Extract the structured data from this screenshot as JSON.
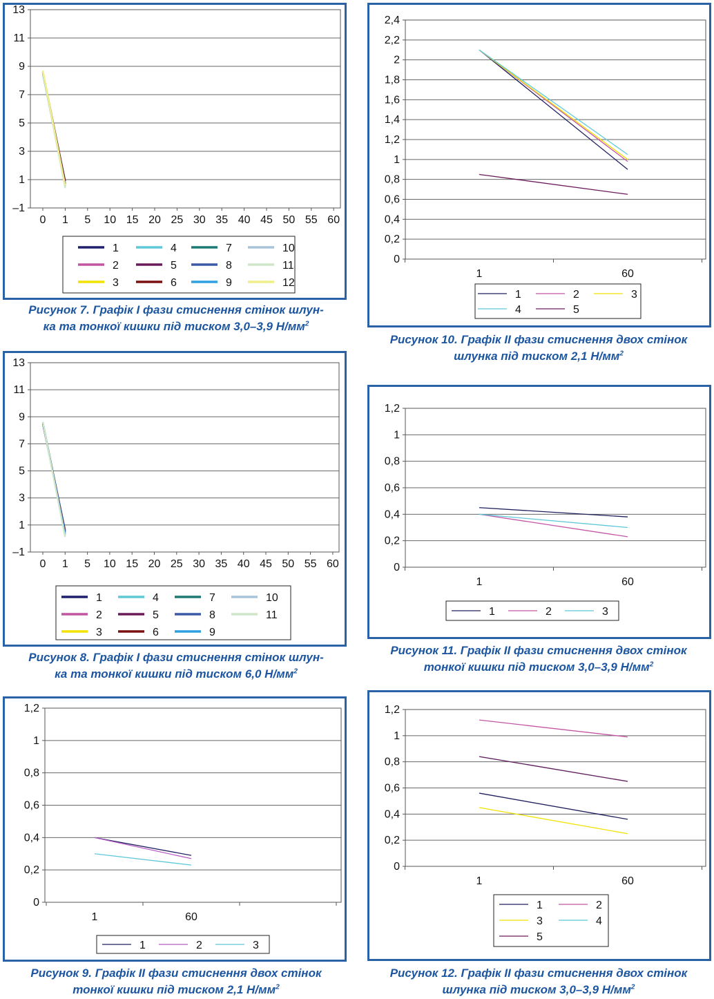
{
  "captions": {
    "fig7": {
      "line1": "Рисунок 7. Графік I фази стиснення стінок шлун-",
      "line2": "ка та тонкої кишки під тиском 3,0–3,9 Н/мм",
      "sup": "2"
    },
    "fig8": {
      "line1": "Рисунок 8. Графік I фази стиснення стінок шлун-",
      "line2": "ка та тонкої кишки під тиском 6,0 Н/мм",
      "sup": "2"
    },
    "fig9": {
      "line1": "Рисунок 9. Графік II фази стиснення двох стінок",
      "line2": "тонкої кишки під тиском 2,1 Н/мм",
      "sup": "2"
    },
    "fig10": {
      "line1": "Рисунок 10. Графік II фази стиснення двох стінок",
      "line2": "шлунка під тиском 2,1 Н/мм",
      "sup": "2"
    },
    "fig11": {
      "line1": "Рисунок 11. Графік II фази стиснення двох стінок",
      "line2": "тонкої кишки під тиском 3,0–3,9 Н/мм",
      "sup": "2"
    },
    "fig12": {
      "line1": "Рисунок 12. Графік II фази стиснення двох стінок",
      "line2": "шлунка під тиском 3,0–3,9 Н/мм",
      "sup": "2"
    }
  },
  "chart_data": [
    {
      "id": "fig7",
      "type": "line",
      "x_ticks": [
        "0",
        "1",
        "5",
        "10",
        "15",
        "20",
        "25",
        "30",
        "35",
        "40",
        "45",
        "50",
        "55",
        "60"
      ],
      "y_ticks": [
        "–1",
        "1",
        "3",
        "5",
        "7",
        "9",
        "11",
        "13"
      ],
      "ylim": [
        -1,
        13
      ],
      "grid": true,
      "legend_position": "bottom",
      "series": [
        {
          "name": "1",
          "color": "#1f1f6e",
          "values": [
            [
              0,
              8.6
            ],
            [
              1,
              0.9
            ]
          ]
        },
        {
          "name": "2",
          "color": "#c354a4",
          "values": [
            [
              0,
              8.6
            ],
            [
              1,
              0.8
            ]
          ]
        },
        {
          "name": "3",
          "color": "#f2e200",
          "values": [
            [
              0,
              8.7
            ],
            [
              1,
              0.7
            ]
          ]
        },
        {
          "name": "4",
          "color": "#5ec8d8",
          "values": [
            [
              0,
              8.5
            ],
            [
              1,
              0.6
            ]
          ]
        },
        {
          "name": "5",
          "color": "#6a1a5a",
          "values": [
            [
              0,
              8.6
            ],
            [
              1,
              0.7
            ]
          ]
        },
        {
          "name": "6",
          "color": "#7a1010",
          "values": [
            [
              0,
              8.5
            ],
            [
              1,
              0.9
            ]
          ]
        },
        {
          "name": "7",
          "color": "#1b7a72",
          "values": [
            [
              0,
              8.6
            ],
            [
              1,
              0.6
            ]
          ]
        },
        {
          "name": "8",
          "color": "#3a5aa8",
          "values": [
            [
              0,
              8.5
            ],
            [
              1,
              0.7
            ]
          ]
        },
        {
          "name": "9",
          "color": "#2ea0e0",
          "values": [
            [
              0,
              8.6
            ],
            [
              1,
              0.5
            ]
          ]
        },
        {
          "name": "10",
          "color": "#a8c4d8",
          "values": [
            [
              0,
              8.5
            ],
            [
              1,
              0.5
            ]
          ]
        },
        {
          "name": "11",
          "color": "#cfe6c8",
          "values": [
            [
              0,
              8.6
            ],
            [
              1,
              0.4
            ]
          ]
        },
        {
          "name": "12",
          "color": "#f0ef8a",
          "values": [
            [
              0,
              8.7
            ],
            [
              1,
              0.6
            ]
          ]
        }
      ]
    },
    {
      "id": "fig8",
      "type": "line",
      "x_ticks": [
        "0",
        "1",
        "5",
        "10",
        "15",
        "20",
        "25",
        "30",
        "35",
        "40",
        "45",
        "50",
        "55",
        "60"
      ],
      "y_ticks": [
        "–1",
        "1",
        "3",
        "5",
        "7",
        "9",
        "11",
        "13"
      ],
      "ylim": [
        -1,
        13
      ],
      "grid": true,
      "legend_position": "bottom",
      "series": [
        {
          "name": "1",
          "color": "#1f1f6e",
          "values": [
            [
              0,
              8.5
            ],
            [
              1,
              0.6
            ]
          ]
        },
        {
          "name": "2",
          "color": "#c354a4",
          "values": [
            [
              0,
              8.5
            ],
            [
              1,
              0.5
            ]
          ]
        },
        {
          "name": "3",
          "color": "#f2e200",
          "values": [
            [
              0,
              8.6
            ],
            [
              1,
              0.4
            ]
          ]
        },
        {
          "name": "4",
          "color": "#5ec8d8",
          "values": [
            [
              0,
              8.6
            ],
            [
              1,
              0.3
            ]
          ]
        },
        {
          "name": "5",
          "color": "#6a1a5a",
          "values": [
            [
              0,
              8.5
            ],
            [
              1,
              0.5
            ]
          ]
        },
        {
          "name": "6",
          "color": "#7a1010",
          "values": [
            [
              0,
              8.5
            ],
            [
              1,
              0.6
            ]
          ]
        },
        {
          "name": "7",
          "color": "#1b7a72",
          "values": [
            [
              0,
              8.6
            ],
            [
              1,
              0.4
            ]
          ]
        },
        {
          "name": "8",
          "color": "#3a5aa8",
          "values": [
            [
              0,
              8.5
            ],
            [
              1,
              0.5
            ]
          ]
        },
        {
          "name": "9",
          "color": "#2ea0e0",
          "values": [
            [
              0,
              8.6
            ],
            [
              1,
              0.3
            ]
          ]
        },
        {
          "name": "10",
          "color": "#a8c4d8",
          "values": [
            [
              0,
              8.6
            ],
            [
              1,
              0.2
            ]
          ]
        },
        {
          "name": "11",
          "color": "#cfe6c8",
          "values": [
            [
              0,
              8.6
            ],
            [
              1,
              0.1
            ]
          ]
        }
      ]
    },
    {
      "id": "fig9",
      "type": "line",
      "categories": [
        "1",
        "60"
      ],
      "y_ticks": [
        "0",
        "0,2",
        "0,4",
        "0,6",
        "0,8",
        "1",
        "1,2"
      ],
      "ylim": [
        0,
        1.2
      ],
      "grid": true,
      "legend_position": "bottom",
      "series": [
        {
          "name": "1",
          "color": "#1f1f5e",
          "values": [
            0.4,
            0.29
          ]
        },
        {
          "name": "2",
          "color": "#b85cc4",
          "values": [
            0.4,
            0.27
          ]
        },
        {
          "name": "3",
          "color": "#5ec8d8",
          "values": [
            0.3,
            0.23
          ]
        }
      ]
    },
    {
      "id": "fig10",
      "type": "line",
      "categories": [
        "1",
        "60"
      ],
      "y_ticks": [
        "0",
        "0,2",
        "0,4",
        "0,6",
        "0,8",
        "1",
        "1,2",
        "1,4",
        "1,6",
        "1,8",
        "2",
        "2,2",
        "2,4"
      ],
      "ylim": [
        0,
        2.4
      ],
      "grid": true,
      "legend_position": "bottom",
      "series": [
        {
          "name": "1",
          "color": "#1f1f5e",
          "values": [
            2.1,
            0.9
          ]
        },
        {
          "name": "2",
          "color": "#c354a4",
          "values": [
            2.1,
            0.98
          ]
        },
        {
          "name": "3",
          "color": "#f2e200",
          "values": [
            2.1,
            1.0
          ]
        },
        {
          "name": "4",
          "color": "#5ec8d8",
          "values": [
            2.1,
            1.05
          ]
        },
        {
          "name": "5",
          "color": "#6a1a5a",
          "values": [
            0.85,
            0.65
          ]
        }
      ]
    },
    {
      "id": "fig11",
      "type": "line",
      "categories": [
        "1",
        "60"
      ],
      "y_ticks": [
        "0",
        "0,2",
        "0,4",
        "0,6",
        "0,8",
        "1",
        "1,2"
      ],
      "ylim": [
        0,
        1.2
      ],
      "grid": true,
      "legend_position": "bottom",
      "series": [
        {
          "name": "1",
          "color": "#1f1f5e",
          "values": [
            0.45,
            0.38
          ]
        },
        {
          "name": "2",
          "color": "#c354a4",
          "values": [
            0.4,
            0.23
          ]
        },
        {
          "name": "3",
          "color": "#5ec8d8",
          "values": [
            0.4,
            0.3
          ]
        }
      ]
    },
    {
      "id": "fig12",
      "type": "line",
      "categories": [
        "1",
        "60"
      ],
      "y_ticks": [
        "0",
        "0,2",
        "0,4",
        "0,6",
        "0,8",
        "1",
        "1,2"
      ],
      "ylim": [
        0,
        1.2
      ],
      "grid": true,
      "legend_position": "bottom",
      "series": [
        {
          "name": "1",
          "color": "#1f1f5e",
          "values": [
            0.56,
            0.36
          ]
        },
        {
          "name": "2",
          "color": "#c354a4",
          "values": [
            1.12,
            0.99
          ]
        },
        {
          "name": "3",
          "color": "#f2e200",
          "values": [
            0.45,
            0.25
          ]
        },
        {
          "name": "4",
          "color": "#5ec8d8",
          "values": [
            0.84,
            0.65
          ]
        },
        {
          "name": "5",
          "color": "#6a1a5a",
          "values": [
            0.84,
            0.65
          ]
        }
      ]
    }
  ]
}
